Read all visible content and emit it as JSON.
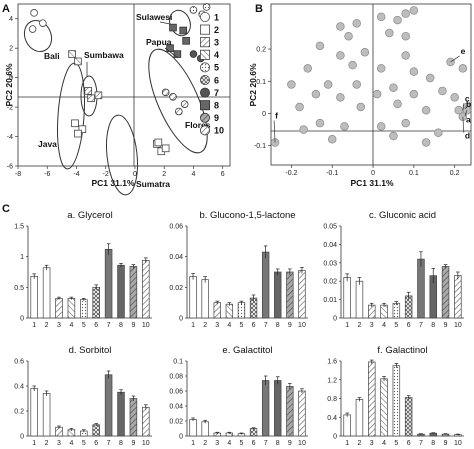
{
  "panel_labels": [
    "A",
    "B",
    "C"
  ],
  "chart_data": [
    {
      "type": "scatter",
      "panel": "A",
      "xlabel": "PC1 31.1%",
      "ylabel": "PC2 20.6%",
      "xlim": [
        -8,
        6.5
      ],
      "ylim": [
        -6,
        5
      ],
      "xticks": [
        -8,
        -6,
        -4,
        -2,
        0,
        2,
        4,
        6
      ],
      "yticks": [
        -6,
        -4,
        -2,
        0,
        2,
        4
      ],
      "groups": [
        {
          "name": "Bali",
          "points": [
            [
              -6.9,
              4.4
            ],
            [
              -6.3,
              3.7
            ],
            [
              -7.0,
              3.3
            ]
          ]
        },
        {
          "name": "Java",
          "points": [
            [
              -4.1,
              -3.1
            ],
            [
              -3.6,
              -3.5
            ],
            [
              -3.9,
              -3.8
            ]
          ]
        },
        {
          "name": "Sumbawa",
          "points": [
            [
              -3.2,
              -0.9
            ],
            [
              -2.5,
              -1.2
            ],
            [
              -3.0,
              -1.4
            ]
          ]
        },
        {
          "name": "Sumbawa",
          "points": [
            [
              -4.3,
              1.6
            ],
            [
              -3.9,
              1.1
            ]
          ]
        },
        {
          "name": "Sumatra",
          "points": [
            [
              1.5,
              -4.5
            ],
            [
              1.8,
              -5.0
            ],
            [
              2.1,
              -4.8
            ],
            [
              1.6,
              -4.4
            ]
          ]
        },
        {
          "name": "Sulawesi",
          "points": [
            [
              4.0,
              4.6
            ],
            [
              4.6,
              4.3
            ],
            [
              4.9,
              4.8
            ]
          ]
        },
        {
          "name": "Papua",
          "points": [
            [
              2.6,
              3.4
            ],
            [
              3.3,
              3.2
            ],
            [
              3.5,
              2.5
            ],
            [
              2.4,
              2.0
            ],
            [
              2.9,
              1.6
            ]
          ]
        },
        {
          "name": "Papua",
          "points": [
            [
              4.0,
              1.6
            ],
            [
              4.5,
              1.3
            ]
          ]
        },
        {
          "name": "Flores",
          "points": [
            [
              2.6,
              -1.3
            ],
            [
              3.0,
              -2.3
            ],
            [
              3.4,
              -1.8
            ],
            [
              2.1,
              -1.0
            ]
          ]
        }
      ],
      "annotations": [
        "Bali",
        "Sumbawa",
        "Java",
        "Sulawesi",
        "Papua",
        "Flores",
        "Sumatra"
      ],
      "legend": [
        "1",
        "2",
        "3",
        "4",
        "5",
        "6",
        "7",
        "8",
        "9",
        "10"
      ]
    },
    {
      "type": "scatter",
      "panel": "B",
      "xlabel": "PC1 31.1%",
      "ylabel": "PC2 20.6%",
      "xlim": [
        -0.25,
        0.24
      ],
      "ylim": [
        -0.16,
        0.34
      ],
      "xticks": [
        -0.2,
        -0.1,
        0,
        0.1,
        0.2
      ],
      "yticks": [
        -0.1,
        0,
        0.1,
        0.2
      ],
      "points": [
        [
          0.08,
          0.31
        ],
        [
          0.1,
          0.32
        ],
        [
          0.06,
          0.29
        ],
        [
          0.02,
          0.3
        ],
        [
          -0.04,
          0.28
        ],
        [
          -0.08,
          0.27
        ],
        [
          0.04,
          0.25
        ],
        [
          -0.06,
          0.24
        ],
        [
          0.08,
          0.24
        ],
        [
          -0.13,
          0.21
        ],
        [
          -0.02,
          0.19
        ],
        [
          -0.08,
          0.18
        ],
        [
          0.08,
          0.18
        ],
        [
          0.19,
          0.16
        ],
        [
          -0.16,
          0.14
        ],
        [
          -0.05,
          0.15
        ],
        [
          0.02,
          0.14
        ],
        [
          0.22,
          0.14
        ],
        [
          0.1,
          0.13
        ],
        [
          0.14,
          0.11
        ],
        [
          -0.2,
          0.09
        ],
        [
          -0.11,
          0.09
        ],
        [
          -0.04,
          0.09
        ],
        [
          0.05,
          0.08
        ],
        [
          0.17,
          0.07
        ],
        [
          -0.14,
          0.06
        ],
        [
          0.01,
          0.06
        ],
        [
          -0.08,
          0.05
        ],
        [
          0.1,
          0.06
        ],
        [
          0.2,
          0.05
        ],
        [
          0.06,
          0.03
        ],
        [
          -0.18,
          0.02
        ],
        [
          -0.03,
          0.02
        ],
        [
          0.13,
          0.01
        ],
        [
          0.21,
          0.01
        ],
        [
          0.23,
          0.02
        ],
        [
          0.23,
          0.01
        ],
        [
          0.22,
          -0.01
        ],
        [
          -0.13,
          -0.03
        ],
        [
          0.08,
          -0.03
        ],
        [
          0.02,
          -0.04
        ],
        [
          -0.17,
          -0.05
        ],
        [
          -0.07,
          -0.04
        ],
        [
          0.16,
          -0.06
        ],
        [
          0.05,
          -0.07
        ],
        [
          -0.1,
          -0.08
        ],
        [
          0.13,
          -0.09
        ],
        [
          -0.24,
          -0.09
        ]
      ],
      "labelled_points": [
        {
          "label": "a",
          "point": [
            0.23,
            0.01
          ]
        },
        {
          "label": "b",
          "point": [
            0.23,
            0.02
          ]
        },
        {
          "label": "c",
          "point": [
            0.22,
            0.01
          ]
        },
        {
          "label": "d",
          "point": [
            0.22,
            -0.01
          ]
        },
        {
          "label": "e",
          "point": [
            0.19,
            0.16
          ]
        },
        {
          "label": "f",
          "point": [
            -0.24,
            -0.09
          ]
        }
      ]
    },
    {
      "type": "bar",
      "title": "a. Glycerol",
      "categories": [
        "1",
        "2",
        "3",
        "4",
        "5",
        "6",
        "7",
        "8",
        "9",
        "10"
      ],
      "values": [
        0.68,
        0.82,
        0.32,
        0.32,
        0.3,
        0.5,
        1.12,
        0.86,
        0.84,
        0.94
      ],
      "errors": [
        0.04,
        0.04,
        0.02,
        0.02,
        0.02,
        0.04,
        0.09,
        0.03,
        0.03,
        0.04
      ],
      "ylim": [
        0,
        1.5
      ],
      "yticks": [
        0,
        0.5,
        1,
        1.5
      ],
      "ytick_labels": [
        "0",
        "0.5",
        "1",
        "1.5"
      ]
    },
    {
      "type": "bar",
      "title": "b. Glucono-1,5-lactone",
      "categories": [
        "1",
        "2",
        "3",
        "4",
        "5",
        "6",
        "7",
        "8",
        "9",
        "10"
      ],
      "values": [
        0.027,
        0.025,
        0.01,
        0.009,
        0.01,
        0.013,
        0.043,
        0.03,
        0.03,
        0.031
      ],
      "errors": [
        0.002,
        0.002,
        0.001,
        0.001,
        0.001,
        0.002,
        0.004,
        0.002,
        0.002,
        0.002
      ],
      "ylim": [
        0,
        0.06
      ],
      "yticks": [
        0,
        0.02,
        0.04,
        0.06
      ],
      "ytick_labels": [
        "0",
        "0.02",
        "0.04",
        "0.06"
      ]
    },
    {
      "type": "bar",
      "title": "c. Gluconic acid",
      "categories": [
        "1",
        "2",
        "3",
        "4",
        "5",
        "6",
        "7",
        "8",
        "9",
        "10"
      ],
      "values": [
        0.022,
        0.02,
        0.007,
        0.007,
        0.008,
        0.012,
        0.032,
        0.023,
        0.028,
        0.023
      ],
      "errors": [
        0.002,
        0.002,
        0.001,
        0.001,
        0.001,
        0.002,
        0.004,
        0.004,
        0.001,
        0.002
      ],
      "ylim": [
        0,
        0.05
      ],
      "yticks": [
        0,
        0.01,
        0.02,
        0.03,
        0.04,
        0.05
      ],
      "ytick_labels": [
        "0",
        "0.01",
        "0.02",
        "0.03",
        "0.04",
        "0.05"
      ]
    },
    {
      "type": "bar",
      "title": "d. Sorbitol",
      "categories": [
        "1",
        "2",
        "3",
        "4",
        "5",
        "6",
        "7",
        "8",
        "9",
        "10"
      ],
      "values": [
        0.38,
        0.34,
        0.07,
        0.05,
        0.04,
        0.09,
        0.49,
        0.35,
        0.3,
        0.23
      ],
      "errors": [
        0.02,
        0.02,
        0.01,
        0.01,
        0.01,
        0.01,
        0.03,
        0.02,
        0.02,
        0.02
      ],
      "ylim": [
        0,
        0.6
      ],
      "yticks": [
        0,
        0.2,
        0.4,
        0.6
      ],
      "ytick_labels": [
        "0",
        "0.2",
        "0.4",
        "0.6"
      ]
    },
    {
      "type": "bar",
      "title": "e. Galactitol",
      "categories": [
        "1",
        "2",
        "3",
        "4",
        "5",
        "6",
        "7",
        "8",
        "9",
        "10"
      ],
      "values": [
        0.022,
        0.019,
        0.004,
        0.004,
        0.003,
        0.01,
        0.074,
        0.074,
        0.066,
        0.06
      ],
      "errors": [
        0.002,
        0.002,
        0.001,
        0.001,
        0.001,
        0.001,
        0.006,
        0.005,
        0.004,
        0.003
      ],
      "ylim": [
        0,
        0.1
      ],
      "yticks": [
        0,
        0.02,
        0.04,
        0.06,
        0.08,
        0.1
      ],
      "ytick_labels": [
        "0",
        "0.02",
        "0.04",
        "0.06",
        "0.08",
        "0.1"
      ]
    },
    {
      "type": "bar",
      "title": "f. Galactinol",
      "categories": [
        "1",
        "2",
        "3",
        "4",
        "5",
        "6",
        "7",
        "8",
        "9",
        "10"
      ],
      "values": [
        0.45,
        0.78,
        1.58,
        1.22,
        1.5,
        0.82,
        0.04,
        0.06,
        0.04,
        0.03
      ],
      "errors": [
        0.04,
        0.04,
        0.04,
        0.05,
        0.05,
        0.04,
        0.01,
        0.01,
        0.01,
        0.01
      ],
      "ylim": [
        0,
        1.6
      ],
      "yticks": [
        0,
        0.4,
        0.8,
        1.2,
        1.6
      ],
      "ytick_labels": [
        "0",
        "0.4",
        "0.8",
        "1.2",
        "1.6"
      ]
    }
  ]
}
